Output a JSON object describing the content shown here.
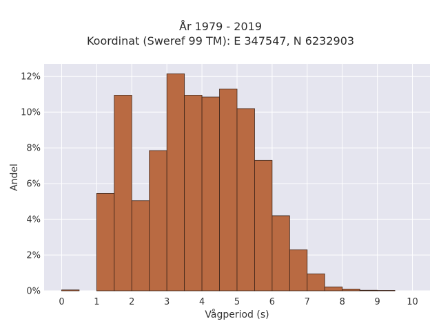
{
  "chart_data": {
    "type": "bar",
    "title_line1": "År 1979 - 2019",
    "title_line2": "Koordinat (Sweref 99 TM): E 347547, N 6232903",
    "xlabel": "Vågperiod (s)",
    "ylabel": "Andel",
    "xlim": [
      -0.5,
      10.5
    ],
    "ylim": [
      0,
      12.7
    ],
    "bin_width": 0.5,
    "bins": [
      {
        "start": 0.0,
        "value": 0.05
      },
      {
        "start": 0.5,
        "value": 0.0
      },
      {
        "start": 1.0,
        "value": 5.45
      },
      {
        "start": 1.5,
        "value": 10.95
      },
      {
        "start": 2.0,
        "value": 5.05
      },
      {
        "start": 2.5,
        "value": 7.85
      },
      {
        "start": 3.0,
        "value": 12.15
      },
      {
        "start": 3.5,
        "value": 10.95
      },
      {
        "start": 4.0,
        "value": 10.85
      },
      {
        "start": 4.5,
        "value": 11.3
      },
      {
        "start": 5.0,
        "value": 10.2
      },
      {
        "start": 5.5,
        "value": 7.3
      },
      {
        "start": 6.0,
        "value": 4.2
      },
      {
        "start": 6.5,
        "value": 2.3
      },
      {
        "start": 7.0,
        "value": 0.95
      },
      {
        "start": 7.5,
        "value": 0.22
      },
      {
        "start": 8.0,
        "value": 0.1
      },
      {
        "start": 8.5,
        "value": 0.03
      },
      {
        "start": 9.0,
        "value": 0.02
      }
    ],
    "x_ticks": [
      0,
      1,
      2,
      3,
      4,
      5,
      6,
      7,
      8,
      9,
      10
    ],
    "x_tick_labels": [
      "0",
      "1",
      "2",
      "3",
      "4",
      "5",
      "6",
      "7",
      "8",
      "9",
      "10"
    ],
    "y_ticks": [
      0,
      2,
      4,
      6,
      8,
      10,
      12
    ],
    "y_tick_labels": [
      "0%",
      "2%",
      "4%",
      "6%",
      "8%",
      "10%",
      "12%"
    ],
    "grid": true,
    "colors": {
      "plot_background": "#e5e5ef",
      "grid": "#ffffff",
      "bar_fill": "#b96a42",
      "bar_edge": "#3d2418"
    }
  }
}
